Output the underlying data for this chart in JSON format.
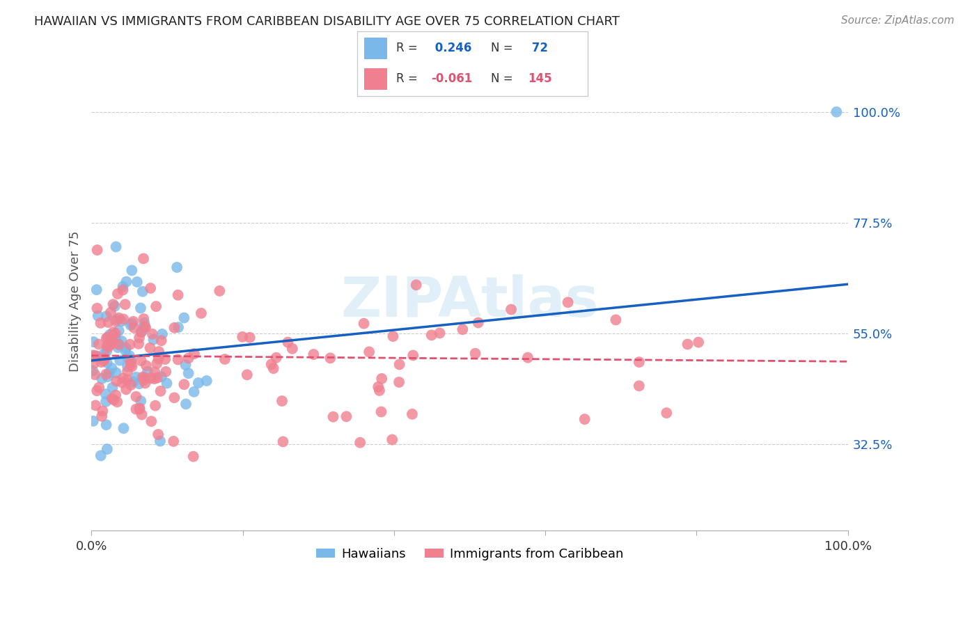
{
  "title": "HAWAIIAN VS IMMIGRANTS FROM CARIBBEAN DISABILITY AGE OVER 75 CORRELATION CHART",
  "source": "Source: ZipAtlas.com",
  "ylabel": "Disability Age Over 75",
  "ytick_labels": [
    "32.5%",
    "55.0%",
    "77.5%",
    "100.0%"
  ],
  "ytick_values": [
    0.325,
    0.55,
    0.775,
    1.0
  ],
  "xlim": [
    0.0,
    1.0
  ],
  "ylim": [
    0.15,
    1.08
  ],
  "color_hawaiian": "#7ab8ea",
  "color_caribbean": "#f08090",
  "color_line_haw": "#1560c0",
  "color_line_car": "#e05070",
  "r_hawaiian": 0.246,
  "n_hawaiian": 72,
  "r_caribbean": -0.061,
  "n_caribbean": 145,
  "legend_label_haw": "Hawaiians",
  "legend_label_car": "Immigrants from Caribbean",
  "watermark": "ZIPAtlas",
  "background_color": "#ffffff",
  "grid_color": "#cccccc",
  "title_fontsize": 13,
  "source_fontsize": 11,
  "axis_label_fontsize": 13,
  "tick_fontsize": 13,
  "legend_fontsize": 13,
  "line_intercept_haw": 0.495,
  "line_slope_haw": 0.155,
  "line_intercept_car": 0.505,
  "line_slope_car": -0.012
}
